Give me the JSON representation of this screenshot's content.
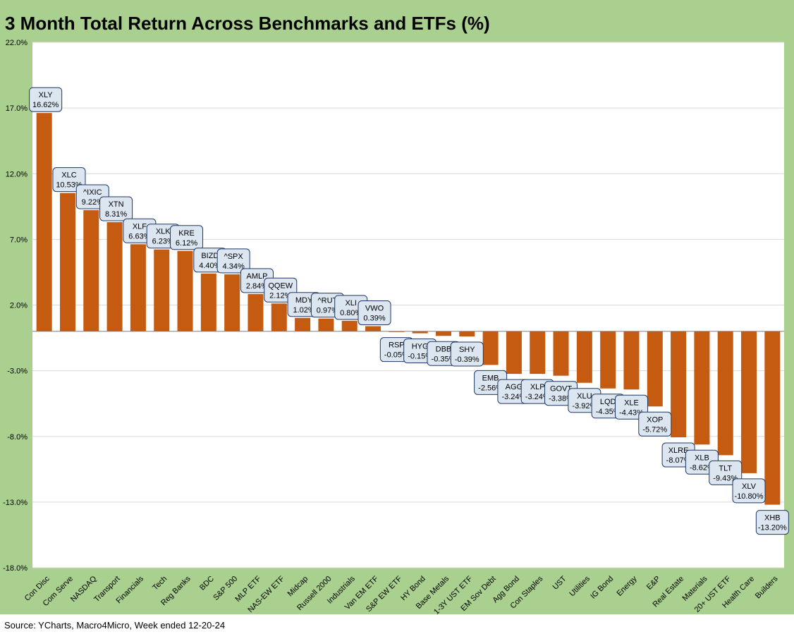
{
  "title": "3 Month Total Return Across Benchmarks and ETFs (%)",
  "source": "Source: YCharts, Macro4Micro, Week ended 12-20-24",
  "colors": {
    "bar": "#c55a11",
    "frame": "#a9d08e",
    "label_box": "#dce6f1",
    "grid": "#d9d9d9"
  },
  "chart_data": {
    "type": "bar",
    "title": "3 Month Total Return Across Benchmarks and ETFs (%)",
    "xlabel": "",
    "ylabel": "",
    "ylim": [
      -18,
      22
    ],
    "yticks": [
      22,
      17,
      12,
      7,
      2,
      -3,
      -8,
      -13,
      -18
    ],
    "ytick_labels": [
      "22.0%",
      "17.0%",
      "12.0%",
      "7.0%",
      "2.0%",
      "-3.0%",
      "-8.0%",
      "-13.0%",
      "-18.0%"
    ],
    "grid": true,
    "legend": "none",
    "categories": [
      "Con Disc",
      "Com Serve",
      "NASDAQ",
      "Transport",
      "Financials",
      "Tech",
      "Reg Banks",
      "BDC",
      "S&P 500",
      "MLP ETF",
      "NAS-EW ETF",
      "Midcap",
      "Russell 2000",
      "Industrials",
      "Van EM ETF",
      "S&P EW ETF",
      "HY Bond",
      "Base Metals",
      "1-3Y UST ETF",
      "EM Sov Debt",
      "Agg Bond",
      "Con Staples",
      "UST",
      "Utilities",
      "IG Bond",
      "Energy",
      "E&P",
      "Real Estate",
      "Materials",
      "20+ UST ETF",
      "Health Care",
      "Builders"
    ],
    "tickers": [
      "XLY",
      "XLC",
      "^IXIC",
      "XTN",
      "XLF",
      "XLK",
      "KRE",
      "BIZD",
      "^SPX",
      "AMLP",
      "QQEW",
      "MDY",
      "^RUT",
      "XLI",
      "VWO",
      "RSP",
      "HYG",
      "DBB",
      "SHY",
      "EMB",
      "AGG",
      "XLP",
      "GOVT",
      "XLU",
      "LQD",
      "XLE",
      "XOP",
      "XLRE",
      "XLB",
      "TLT",
      "XLV",
      "XHB"
    ],
    "value_labels": [
      "16.62%",
      "10.53%",
      "9.22%",
      "8.31%",
      "6.63%",
      "6.23%",
      "6.12%",
      "4.40%",
      "4.34%",
      "2.84%",
      "2.12%",
      "1.02%",
      "0.97%",
      "0.80%",
      "0.39%",
      "-0.05%",
      "-0.15%",
      "-0.35%",
      "-0.39%",
      "-2.56%",
      "-3.24%",
      "-3.24%",
      "-3.38%",
      "-3.92%",
      "-4.35%",
      "-4.43%",
      "-5.72%",
      "-8.07%",
      "-8.62%",
      "-9.43%",
      "-10.80%",
      "-13.20%"
    ],
    "values": [
      16.62,
      10.53,
      9.22,
      8.31,
      6.63,
      6.23,
      6.12,
      4.4,
      4.34,
      2.84,
      2.12,
      1.02,
      0.97,
      0.8,
      0.39,
      -0.05,
      -0.15,
      -0.35,
      -0.39,
      -2.56,
      -3.24,
      -3.24,
      -3.38,
      -3.92,
      -4.35,
      -4.43,
      -5.72,
      -8.07,
      -8.62,
      -9.43,
      -10.8,
      -13.2
    ]
  }
}
